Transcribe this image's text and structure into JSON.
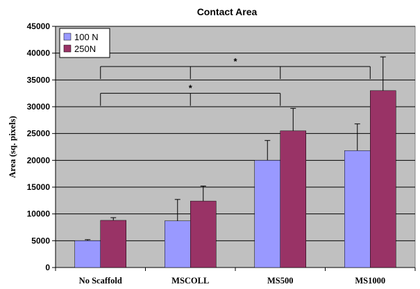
{
  "chart_data": {
    "type": "bar",
    "title": "Contact Area",
    "ylabel": "Area (sq. pixels)",
    "xlabel": "",
    "categories": [
      "No Scaffold",
      "MSCOLL",
      "MS500",
      "MS1000"
    ],
    "series": [
      {
        "name": "100 N",
        "color": "#9999ff",
        "values": [
          5000,
          8700,
          20000,
          21800
        ],
        "errors": [
          200,
          4000,
          3700,
          5000
        ]
      },
      {
        "name": "250N",
        "color": "#993366",
        "values": [
          8800,
          12400,
          25500,
          33000
        ],
        "errors": [
          500,
          2800,
          4200,
          6300
        ]
      }
    ],
    "ylim": [
      0,
      45000
    ],
    "yticks": [
      0,
      5000,
      10000,
      15000,
      20000,
      25000,
      30000,
      35000,
      40000,
      45000
    ],
    "grid": true,
    "legend_position": "top-left",
    "plot_background": "#c0c0c0",
    "significance_brackets": [
      {
        "label": "*",
        "level": 37500,
        "categories": [
          0,
          1,
          2,
          3
        ]
      },
      {
        "label": "*",
        "level": 32500,
        "categories": [
          0,
          1,
          2
        ]
      }
    ]
  }
}
